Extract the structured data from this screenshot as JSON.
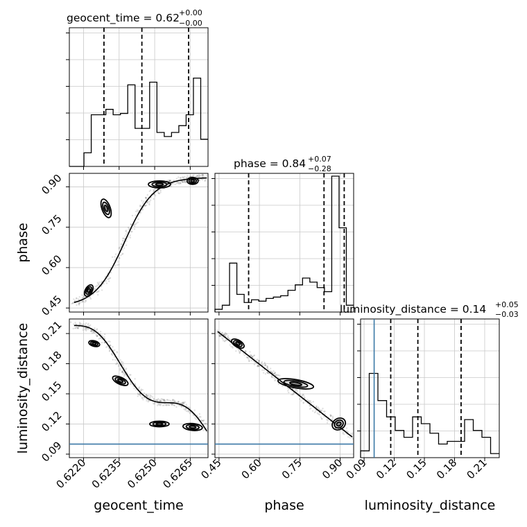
{
  "chart_data": {
    "type": "corner",
    "parameters": [
      "geocent_time",
      "phase",
      "luminosity_distance"
    ],
    "axis_labels": {
      "geocent_time": "geocent_time",
      "phase": "phase",
      "luminosity_distance": "luminosity_distance"
    },
    "ranges": {
      "geocent_time": [
        0.6214,
        0.62725
      ],
      "phase": [
        0.435,
        0.95
      ],
      "luminosity_distance": [
        0.0865,
        0.2245
      ]
    },
    "ticks": {
      "geocent_time": {
        "values": [
          0.622,
          0.6235,
          0.625,
          0.6265
        ],
        "labels": [
          "0.6220",
          "0.6235",
          "0.6250",
          "0.6265"
        ]
      },
      "phase": {
        "values": [
          0.45,
          0.6,
          0.75,
          0.9
        ],
        "labels": [
          "0.45",
          "0.60",
          "0.75",
          "0.90"
        ]
      },
      "luminosity_distance": {
        "values": [
          0.09,
          0.12,
          0.15,
          0.18,
          0.21
        ],
        "labels": [
          "0.09",
          "0.12",
          "0.15",
          "0.18",
          "0.21"
        ]
      }
    },
    "titles": {
      "geocent_time": {
        "text": "geocent_time = 0.62",
        "plus": "+0.00",
        "minus": "−0.00"
      },
      "phase": {
        "text": "phase = 0.84",
        "plus": "+0.07",
        "minus": "−0.28"
      },
      "luminosity_distance": {
        "text": "luminosity_distance = 0.14",
        "plus": "+0.05",
        "minus": "−0.03"
      }
    },
    "quantiles": {
      "geocent_time": [
        0.62286,
        0.62446,
        0.62643
      ],
      "phase": [
        0.56,
        0.84,
        0.915
      ],
      "luminosity_distance": [
        0.1165,
        0.1435,
        0.1865
      ]
    },
    "truth": {
      "luminosity_distance": 0.1
    },
    "histograms": {
      "geocent_time": [
        0.0,
        0.0,
        0.1,
        0.38,
        0.38,
        0.42,
        0.38,
        0.39,
        0.6,
        0.28,
        0.28,
        0.62,
        0.25,
        0.22,
        0.25,
        0.3,
        0.38,
        0.65,
        0.2
      ],
      "phase": [
        0.02,
        0.05,
        0.36,
        0.13,
        0.07,
        0.09,
        0.08,
        0.1,
        0.11,
        0.12,
        0.16,
        0.2,
        0.25,
        0.22,
        0.18,
        0.15,
        1.0,
        0.62,
        0.05
      ],
      "luminosity_distance": [
        0.05,
        0.62,
        0.42,
        0.3,
        0.2,
        0.15,
        0.3,
        0.25,
        0.18,
        0.1,
        0.12,
        0.12,
        0.28,
        0.2,
        0.15,
        0.03
      ]
    },
    "grid": true
  }
}
